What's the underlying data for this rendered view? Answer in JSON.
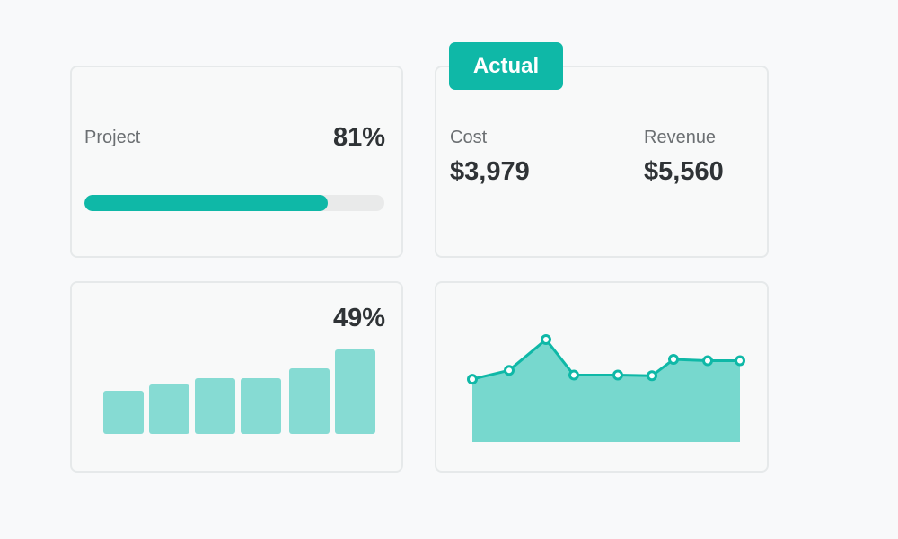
{
  "colors": {
    "accent": "#0fb8a7",
    "bar": "#86dbd3",
    "area": "#77d8ce",
    "track": "#e9eaea"
  },
  "project_card": {
    "label": "Project",
    "percent_text": "81%",
    "progress": 0.81
  },
  "actual_card": {
    "badge": "Actual",
    "cost_label": "Cost",
    "cost_value": "$3,979",
    "revenue_label": "Revenue",
    "revenue_value": "$5,560"
  },
  "bars_card": {
    "percent_text": "49%"
  },
  "chart_data": [
    {
      "type": "bar",
      "title": "",
      "values": [
        48,
        55,
        62,
        62,
        73,
        94
      ],
      "ylim": [
        0,
        100
      ],
      "grid": false
    },
    {
      "type": "area",
      "title": "",
      "values": [
        42,
        55,
        100,
        48,
        48,
        47,
        71,
        69,
        69
      ],
      "ylim": [
        -50,
        110
      ],
      "grid": false
    }
  ]
}
